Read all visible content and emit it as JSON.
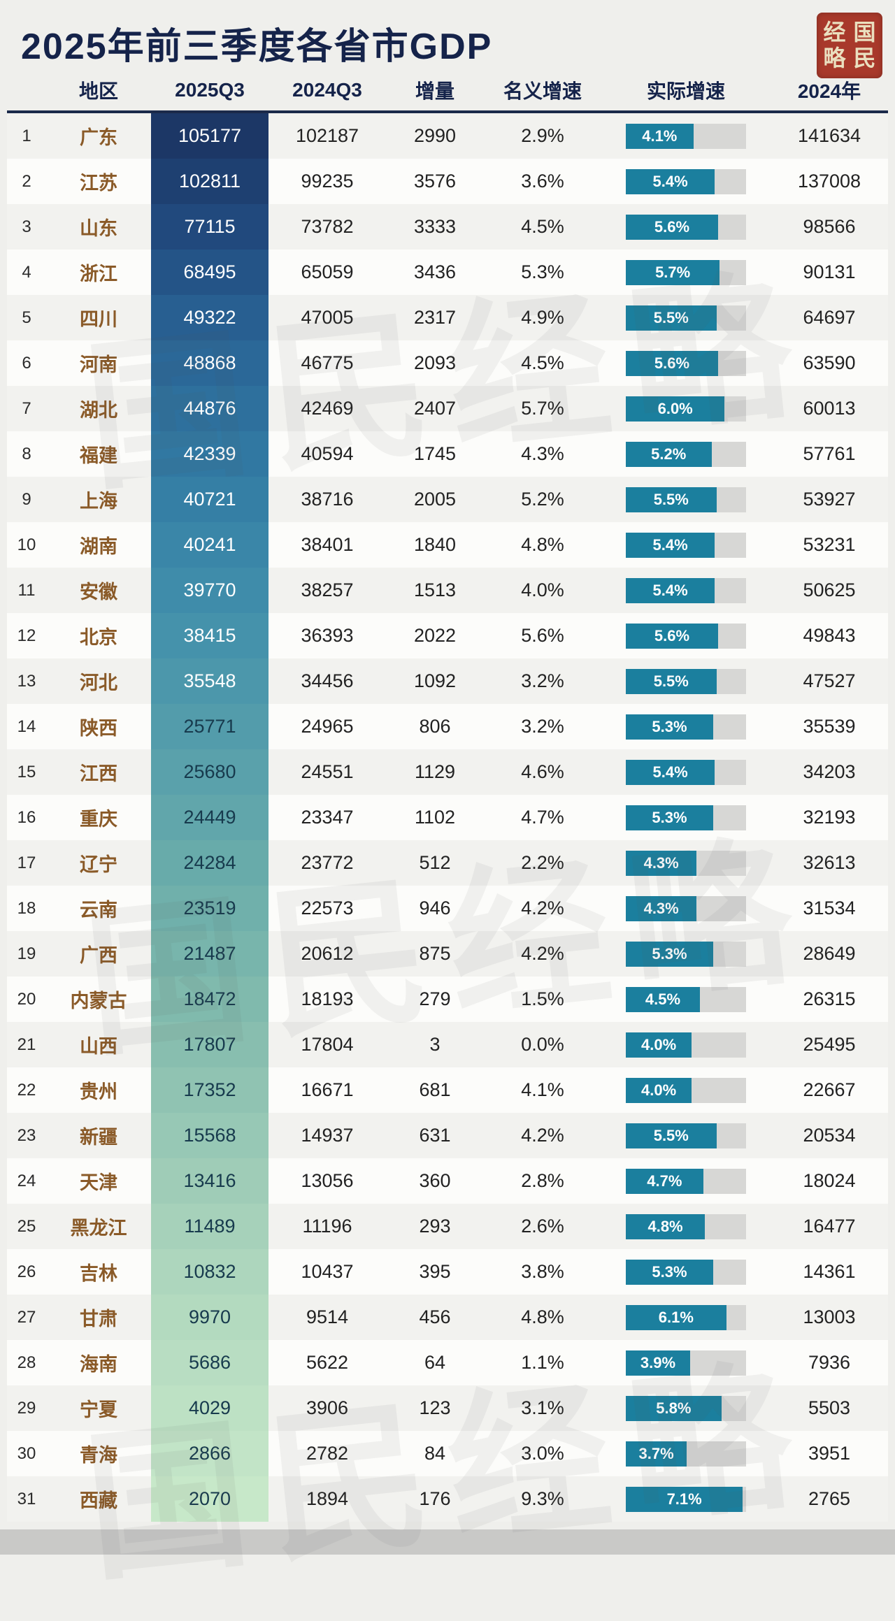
{
  "chart_data": {
    "type": "table",
    "title": "2025年前三季度各省市GDP",
    "columns": [
      "地区",
      "2025Q3",
      "2024Q3",
      "增量",
      "名义增速",
      "实际增速",
      "2024年"
    ],
    "real_bar_max": 7.3,
    "rows": [
      {
        "rank": 1,
        "region": "广东",
        "q2025": "105177",
        "q2024": "102187",
        "delta": "2990",
        "nominal": "2.9%",
        "real": "4.1%",
        "real_pct": 4.1,
        "y2024": "141634"
      },
      {
        "rank": 2,
        "region": "江苏",
        "q2025": "102811",
        "q2024": "99235",
        "delta": "3576",
        "nominal": "3.6%",
        "real": "5.4%",
        "real_pct": 5.4,
        "y2024": "137008"
      },
      {
        "rank": 3,
        "region": "山东",
        "q2025": "77115",
        "q2024": "73782",
        "delta": "3333",
        "nominal": "4.5%",
        "real": "5.6%",
        "real_pct": 5.6,
        "y2024": "98566"
      },
      {
        "rank": 4,
        "region": "浙江",
        "q2025": "68495",
        "q2024": "65059",
        "delta": "3436",
        "nominal": "5.3%",
        "real": "5.7%",
        "real_pct": 5.7,
        "y2024": "90131"
      },
      {
        "rank": 5,
        "region": "四川",
        "q2025": "49322",
        "q2024": "47005",
        "delta": "2317",
        "nominal": "4.9%",
        "real": "5.5%",
        "real_pct": 5.5,
        "y2024": "64697"
      },
      {
        "rank": 6,
        "region": "河南",
        "q2025": "48868",
        "q2024": "46775",
        "delta": "2093",
        "nominal": "4.5%",
        "real": "5.6%",
        "real_pct": 5.6,
        "y2024": "63590"
      },
      {
        "rank": 7,
        "region": "湖北",
        "q2025": "44876",
        "q2024": "42469",
        "delta": "2407",
        "nominal": "5.7%",
        "real": "6.0%",
        "real_pct": 6.0,
        "y2024": "60013"
      },
      {
        "rank": 8,
        "region": "福建",
        "q2025": "42339",
        "q2024": "40594",
        "delta": "1745",
        "nominal": "4.3%",
        "real": "5.2%",
        "real_pct": 5.2,
        "y2024": "57761"
      },
      {
        "rank": 9,
        "region": "上海",
        "q2025": "40721",
        "q2024": "38716",
        "delta": "2005",
        "nominal": "5.2%",
        "real": "5.5%",
        "real_pct": 5.5,
        "y2024": "53927"
      },
      {
        "rank": 10,
        "region": "湖南",
        "q2025": "40241",
        "q2024": "38401",
        "delta": "1840",
        "nominal": "4.8%",
        "real": "5.4%",
        "real_pct": 5.4,
        "y2024": "53231"
      },
      {
        "rank": 11,
        "region": "安徽",
        "q2025": "39770",
        "q2024": "38257",
        "delta": "1513",
        "nominal": "4.0%",
        "real": "5.4%",
        "real_pct": 5.4,
        "y2024": "50625"
      },
      {
        "rank": 12,
        "region": "北京",
        "q2025": "38415",
        "q2024": "36393",
        "delta": "2022",
        "nominal": "5.6%",
        "real": "5.6%",
        "real_pct": 5.6,
        "y2024": "49843"
      },
      {
        "rank": 13,
        "region": "河北",
        "q2025": "35548",
        "q2024": "34456",
        "delta": "1092",
        "nominal": "3.2%",
        "real": "5.5%",
        "real_pct": 5.5,
        "y2024": "47527"
      },
      {
        "rank": 14,
        "region": "陕西",
        "q2025": "25771",
        "q2024": "24965",
        "delta": "806",
        "nominal": "3.2%",
        "real": "5.3%",
        "real_pct": 5.3,
        "y2024": "35539"
      },
      {
        "rank": 15,
        "region": "江西",
        "q2025": "25680",
        "q2024": "24551",
        "delta": "1129",
        "nominal": "4.6%",
        "real": "5.4%",
        "real_pct": 5.4,
        "y2024": "34203"
      },
      {
        "rank": 16,
        "region": "重庆",
        "q2025": "24449",
        "q2024": "23347",
        "delta": "1102",
        "nominal": "4.7%",
        "real": "5.3%",
        "real_pct": 5.3,
        "y2024": "32193"
      },
      {
        "rank": 17,
        "region": "辽宁",
        "q2025": "24284",
        "q2024": "23772",
        "delta": "512",
        "nominal": "2.2%",
        "real": "4.3%",
        "real_pct": 4.3,
        "y2024": "32613"
      },
      {
        "rank": 18,
        "region": "云南",
        "q2025": "23519",
        "q2024": "22573",
        "delta": "946",
        "nominal": "4.2%",
        "real": "4.3%",
        "real_pct": 4.3,
        "y2024": "31534"
      },
      {
        "rank": 19,
        "region": "广西",
        "q2025": "21487",
        "q2024": "20612",
        "delta": "875",
        "nominal": "4.2%",
        "real": "5.3%",
        "real_pct": 5.3,
        "y2024": "28649"
      },
      {
        "rank": 20,
        "region": "内蒙古",
        "q2025": "18472",
        "q2024": "18193",
        "delta": "279",
        "nominal": "1.5%",
        "real": "4.5%",
        "real_pct": 4.5,
        "y2024": "26315"
      },
      {
        "rank": 21,
        "region": "山西",
        "q2025": "17807",
        "q2024": "17804",
        "delta": "3",
        "nominal": "0.0%",
        "real": "4.0%",
        "real_pct": 4.0,
        "y2024": "25495"
      },
      {
        "rank": 22,
        "region": "贵州",
        "q2025": "17352",
        "q2024": "16671",
        "delta": "681",
        "nominal": "4.1%",
        "real": "4.0%",
        "real_pct": 4.0,
        "y2024": "22667"
      },
      {
        "rank": 23,
        "region": "新疆",
        "q2025": "15568",
        "q2024": "14937",
        "delta": "631",
        "nominal": "4.2%",
        "real": "5.5%",
        "real_pct": 5.5,
        "y2024": "20534"
      },
      {
        "rank": 24,
        "region": "天津",
        "q2025": "13416",
        "q2024": "13056",
        "delta": "360",
        "nominal": "2.8%",
        "real": "4.7%",
        "real_pct": 4.7,
        "y2024": "18024"
      },
      {
        "rank": 25,
        "region": "黑龙江",
        "q2025": "11489",
        "q2024": "11196",
        "delta": "293",
        "nominal": "2.6%",
        "real": "4.8%",
        "real_pct": 4.8,
        "y2024": "16477"
      },
      {
        "rank": 26,
        "region": "吉林",
        "q2025": "10832",
        "q2024": "10437",
        "delta": "395",
        "nominal": "3.8%",
        "real": "5.3%",
        "real_pct": 5.3,
        "y2024": "14361"
      },
      {
        "rank": 27,
        "region": "甘肃",
        "q2025": "9970",
        "q2024": "9514",
        "delta": "456",
        "nominal": "4.8%",
        "real": "6.1%",
        "real_pct": 6.1,
        "y2024": "13003"
      },
      {
        "rank": 28,
        "region": "海南",
        "q2025": "5686",
        "q2024": "5622",
        "delta": "64",
        "nominal": "1.1%",
        "real": "3.9%",
        "real_pct": 3.9,
        "y2024": "7936"
      },
      {
        "rank": 29,
        "region": "宁夏",
        "q2025": "4029",
        "q2024": "3906",
        "delta": "123",
        "nominal": "3.1%",
        "real": "5.8%",
        "real_pct": 5.8,
        "y2024": "5503"
      },
      {
        "rank": 30,
        "region": "青海",
        "q2025": "2866",
        "q2024": "2782",
        "delta": "84",
        "nominal": "3.0%",
        "real": "3.7%",
        "real_pct": 3.7,
        "y2024": "3951"
      },
      {
        "rank": 31,
        "region": "西藏",
        "q2025": "2070",
        "q2024": "1894",
        "delta": "176",
        "nominal": "9.3%",
        "real": "7.1%",
        "real_pct": 7.1,
        "y2024": "2765"
      }
    ]
  },
  "seal": {
    "left": "经略",
    "right": "国民"
  },
  "watermark": "国民经略",
  "colors": {
    "page_bg": "#efefec",
    "row_odd": "#f2f2ef",
    "row_even": "#fcfcfa",
    "title_text": "#15234a",
    "header_text": "#15234a",
    "region_text": "#8a5a28",
    "bar": "#1b7f9e",
    "bar_track": "#d7d7d5",
    "seal_bg": "#a8392b",
    "seal_text": "#eadfbf",
    "q2025_text_light": "#ffffff",
    "q2025_text_dark": "#173a4d",
    "q2025_gradient": [
      {
        "t": 0.0,
        "c": "#1c3766"
      },
      {
        "t": 0.07,
        "c": "#214a7e"
      },
      {
        "t": 0.15,
        "c": "#2a6496"
      },
      {
        "t": 0.25,
        "c": "#327ca4"
      },
      {
        "t": 0.35,
        "c": "#418fab"
      },
      {
        "t": 0.45,
        "c": "#569fab"
      },
      {
        "t": 0.55,
        "c": "#6cadaa"
      },
      {
        "t": 0.65,
        "c": "#84bcae"
      },
      {
        "t": 0.75,
        "c": "#9bcab6"
      },
      {
        "t": 0.85,
        "c": "#b0d8be"
      },
      {
        "t": 1.0,
        "c": "#c7e8c9"
      }
    ]
  }
}
